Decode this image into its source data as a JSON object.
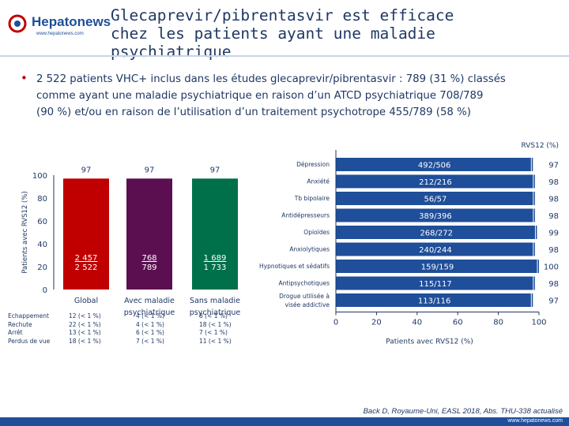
{
  "header": {
    "logo_text": "Hepatonews",
    "logo_url": "www.hepatonews.com",
    "title_line1": "Glecaprevir/pibrentasvir est efficace",
    "title_line2": "chez les patients ayant une maladie psychiatrique"
  },
  "intro": {
    "bullet": "•",
    "line1": "2 522 patients VHC+ inclus dans les études glecaprevir/pibrentasvir : 789 (31 %) classés",
    "line2": "comme ayant une maladie psychiatrique en raison d’un ATCD psychiatrique 708/789",
    "line3": "(90 %) et/ou en raison de l’utilisation d’un traitement psychotrope 455/789 (58 %)"
  },
  "colors": {
    "bar_red": "#c00000",
    "bar_purple": "#5b0f50",
    "bar_green": "#00704a",
    "hbar_blue": "#1f4e9a",
    "text": "#1f3864"
  },
  "chart_data": [
    {
      "type": "bar",
      "ylabel": "Patients avec RVS12 (%)",
      "ylim": [
        0,
        100
      ],
      "yticks": [
        0,
        20,
        40,
        60,
        80,
        100
      ],
      "categories": [
        "Global",
        "Avec maladie psychiatrique",
        "Sans maladie psychiatrique"
      ],
      "category_lines": [
        [
          "Global"
        ],
        [
          "Avec maladie",
          "psychiatrique"
        ],
        [
          "Sans maladie",
          "psychiatrique"
        ]
      ],
      "values": [
        97,
        97,
        97
      ],
      "top_labels": [
        "97",
        "97",
        "97"
      ],
      "counts": [
        [
          "2 457",
          "2 522"
        ],
        [
          "768",
          "789"
        ],
        [
          "1 689",
          "1 733"
        ]
      ],
      "colors": [
        "#c00000",
        "#5b0f50",
        "#00704a"
      ],
      "table_labels": [
        "Echappement",
        "Rechute",
        "Arrêt",
        "Perdus de vue"
      ],
      "table_values": [
        [
          "12 (< 1 %)",
          "22 (< 1 %)",
          "13 (< 1 %)",
          "18 (< 1 %)"
        ],
        [
          "4 (< 1 %)",
          "4 (< 1 %)",
          "6 (< 1 %)",
          "7 (< 1 %)"
        ],
        [
          "8 (< 1 %)",
          "18 (< 1 %)",
          "7 (< 1 %)",
          "11 (< 1 %)"
        ]
      ]
    },
    {
      "type": "bar",
      "orientation": "horizontal",
      "xlabel": "Patients avec RVS12 (%)",
      "value_header": "RVS12 (%)",
      "xlim": [
        0,
        100
      ],
      "xticks": [
        0,
        20,
        40,
        60,
        80,
        100
      ],
      "categories": [
        "Dépression",
        "Anxiété",
        "Tb bipolaire",
        "Antidépresseurs",
        "Opioïdes",
        "Anxiolytiques",
        "Hypnotiques et sédatifs",
        "Antipsychotiques",
        "Drogue utilisée à visée addictive"
      ],
      "category_lines": [
        [
          "Dépression"
        ],
        [
          "Anxiété"
        ],
        [
          "Tb bipolaire"
        ],
        [
          "Antidépresseurs"
        ],
        [
          "Opioïdes"
        ],
        [
          "Anxiolytiques"
        ],
        [
          "Hypnotiques et sédatifs"
        ],
        [
          "Antipsychotiques"
        ],
        [
          "Drogue utilisée à",
          "visée addictive"
        ]
      ],
      "values": [
        97,
        98,
        98,
        98,
        99,
        98,
        100,
        98,
        97
      ],
      "value_labels": [
        "97",
        "98",
        "98",
        "98",
        "99",
        "98",
        "100",
        "98",
        "97"
      ],
      "counts": [
        "492/506",
        "212/216",
        "56/57",
        "389/396",
        "268/272",
        "240/244",
        "159/159",
        "115/117",
        "113/116"
      ]
    }
  ],
  "footer": {
    "reference": "Back D, Royaume-Uni, EASL 2018, Abs. THU-338 actualisé",
    "url": "www.hepatonews.com"
  }
}
